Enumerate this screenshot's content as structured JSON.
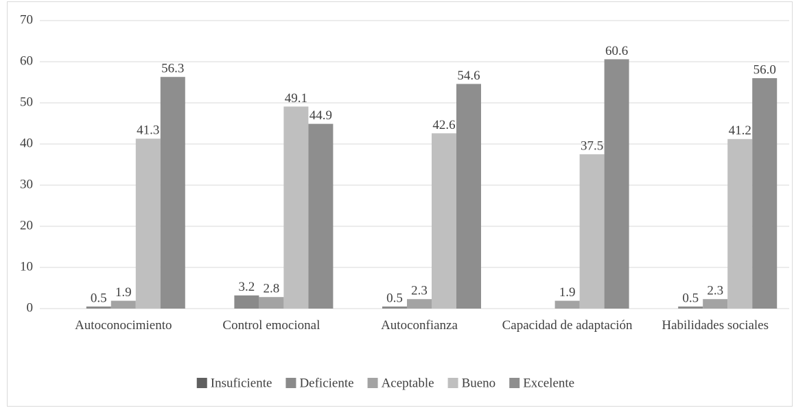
{
  "chart_data": {
    "type": "bar",
    "categories": [
      "Autoconocimiento",
      "Control emocional",
      "Autoconfianza",
      "Capacidad de adaptación",
      "Habilidades sociales"
    ],
    "series": [
      {
        "name": "Insuficiente",
        "color": "#5f5f5f",
        "values": [
          0,
          0,
          0,
          0,
          0
        ]
      },
      {
        "name": "Deficiente",
        "color": "#8a8a8a",
        "values": [
          0.5,
          3.2,
          0.5,
          0,
          0.5
        ]
      },
      {
        "name": "Aceptable",
        "color": "#a3a3a3",
        "values": [
          1.9,
          2.8,
          2.3,
          1.9,
          2.3
        ]
      },
      {
        "name": "Bueno",
        "color": "#bfbfbf",
        "values": [
          41.3,
          49.1,
          42.6,
          37.5,
          41.2
        ]
      },
      {
        "name": "Excelente",
        "color": "#8e8e8e",
        "values": [
          56.3,
          44.9,
          54.6,
          60.6,
          56.0
        ],
        "value_labels": [
          "56.3",
          "44.9",
          "54.6",
          "60.6",
          "56.0"
        ]
      }
    ],
    "ylim": [
      0,
      70
    ],
    "yticks": [
      0,
      10,
      20,
      30,
      40,
      50,
      60,
      70
    ],
    "grid": true,
    "legend": "bottom"
  }
}
